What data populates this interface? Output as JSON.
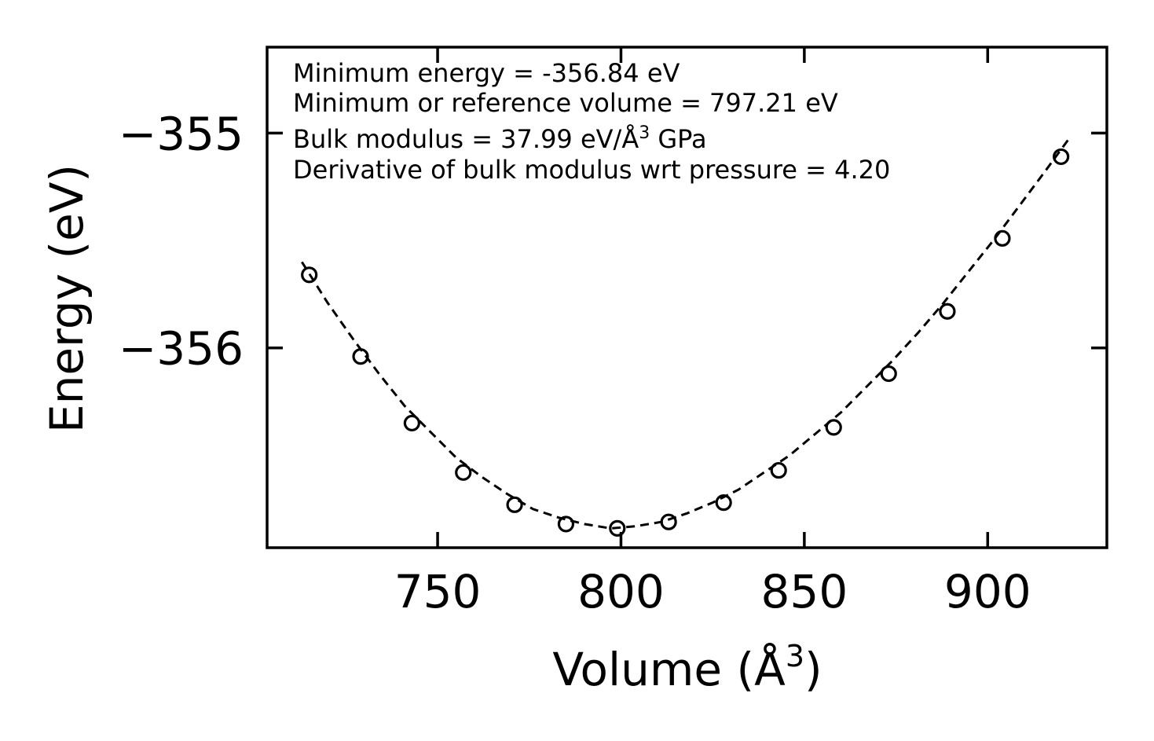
{
  "chart_data": {
    "type": "scatter",
    "title": "",
    "xlabel": "Volume (Å",
    "xlabel_sup": "3",
    "xlabel_suffix": ")",
    "ylabel": "Energy (eV)",
    "xlim": [
      703.5,
      932.5
    ],
    "ylim": [
      -356.93,
      -354.6
    ],
    "xticks": [
      750,
      800,
      850,
      900
    ],
    "xtick_labels": [
      "750",
      "800",
      "850",
      "900"
    ],
    "yticks": [
      -355,
      -356
    ],
    "ytick_labels": [
      "−355",
      "−356"
    ],
    "annotations": {
      "line1": "Minimum energy = -356.84 eV",
      "line2": "Minimum or reference volume = 797.21 eV",
      "line3_pre": "Bulk modulus = 37.99 eV/Å",
      "line3_sup": "3",
      "line3_post": " GPa",
      "line4": "Derivative of bulk modulus wrt pressure = 4.20"
    },
    "series": [
      {
        "name": "data",
        "style": "open circle markers",
        "color": "#000000",
        "x": [
          715,
          729,
          743,
          757,
          771,
          785,
          799,
          813,
          828,
          843,
          858,
          873,
          889,
          904,
          920
        ],
        "y": [
          -355.66,
          -356.04,
          -356.35,
          -356.58,
          -356.73,
          -356.82,
          -356.84,
          -356.81,
          -356.72,
          -356.57,
          -356.37,
          -356.12,
          -355.83,
          -355.49,
          -355.11
        ]
      },
      {
        "name": "fit",
        "style": "dashed line",
        "color": "#000000",
        "x": [
          713,
          720,
          727,
          734,
          741,
          748,
          755,
          762,
          769,
          776,
          783,
          790,
          797.21,
          804,
          811,
          818,
          825,
          832,
          839,
          846,
          853,
          860,
          867,
          874,
          881,
          888,
          895,
          902,
          909,
          916,
          922
        ],
        "y": [
          -355.6,
          -355.79,
          -355.96,
          -356.12,
          -356.27,
          -356.39,
          -356.51,
          -356.6,
          -356.68,
          -356.75,
          -356.79,
          -356.82,
          -356.84,
          -356.83,
          -356.81,
          -356.77,
          -356.72,
          -356.66,
          -356.58,
          -356.5,
          -356.4,
          -356.3,
          -356.18,
          -356.06,
          -355.93,
          -355.79,
          -355.64,
          -355.49,
          -355.33,
          -355.17,
          -355.03
        ]
      }
    ]
  }
}
